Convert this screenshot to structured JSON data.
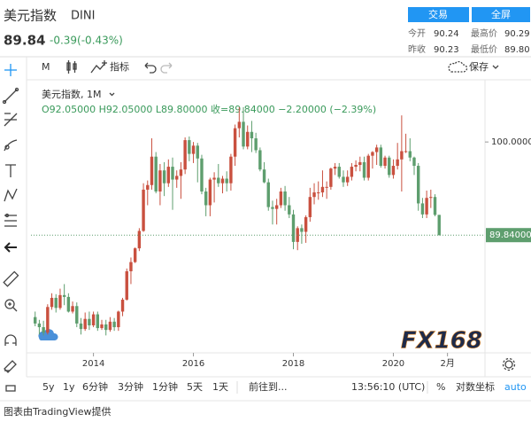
{
  "header": {
    "name": "美元指数",
    "symbol": "DINI",
    "price": "89.84",
    "change": "-0.39(-0.43%)",
    "buttons": [
      "交易",
      "全屏"
    ],
    "stats": [
      {
        "label": "今开",
        "value": "90.24"
      },
      {
        "label": "最高价",
        "value": "90.29"
      },
      {
        "label": "昨收",
        "value": "90.23"
      },
      {
        "label": "最低价",
        "value": "89.80"
      }
    ]
  },
  "toolbar": {
    "interval": "M",
    "indicators": "指标",
    "save": "保存"
  },
  "chart_data": {
    "type": "candlestick",
    "legend": {
      "title": "美元指数, 1M",
      "ohlc": "O92.05000 H92.05000 L89.80000 收=89.84000 −2.20000 (−2.39%)"
    },
    "x": [
      "2012-11",
      "2012-12",
      "2013-01",
      "2013-02",
      "2013-03",
      "2013-04",
      "2013-05",
      "2013-06",
      "2013-07",
      "2013-08",
      "2013-09",
      "2013-10",
      "2013-11",
      "2013-12",
      "2014-01",
      "2014-02",
      "2014-03",
      "2014-04",
      "2014-05",
      "2014-06",
      "2014-07",
      "2014-08",
      "2014-09",
      "2014-10",
      "2014-11",
      "2014-12",
      "2015-01",
      "2015-02",
      "2015-03",
      "2015-04",
      "2015-05",
      "2015-06",
      "2015-07",
      "2015-08",
      "2015-09",
      "2015-10",
      "2015-11",
      "2015-12",
      "2016-01",
      "2016-02",
      "2016-03",
      "2016-04",
      "2016-05",
      "2016-06",
      "2016-07",
      "2016-08",
      "2016-09",
      "2016-10",
      "2016-11",
      "2016-12",
      "2017-01",
      "2017-02",
      "2017-03",
      "2017-04",
      "2017-05",
      "2017-06",
      "2017-07",
      "2017-08",
      "2017-09",
      "2017-10",
      "2017-11",
      "2017-12",
      "2018-01",
      "2018-02",
      "2018-03",
      "2018-04",
      "2018-05",
      "2018-06",
      "2018-07",
      "2018-08",
      "2018-09",
      "2018-10",
      "2018-11",
      "2018-12",
      "2019-01",
      "2019-02",
      "2019-03",
      "2019-04",
      "2019-05",
      "2019-06",
      "2019-07",
      "2019-08",
      "2019-09",
      "2019-10",
      "2019-11",
      "2019-12",
      "2020-01",
      "2020-02",
      "2020-03",
      "2020-04",
      "2020-05",
      "2020-06",
      "2020-07",
      "2020-08",
      "2020-09",
      "2020-10",
      "2020-11",
      "2020-12"
    ],
    "open": [
      80.9,
      80.2,
      79.8,
      79.2,
      82.0,
      83.0,
      81.9,
      83.3,
      83.1,
      81.5,
      82.1,
      80.2,
      79.6,
      80.7,
      80.0,
      81.2,
      79.7,
      80.1,
      79.5,
      80.4,
      79.8,
      81.5,
      82.8,
      85.9,
      86.9,
      88.4,
      90.3,
      94.8,
      95.3,
      98.4,
      94.6,
      96.9,
      95.5,
      97.3,
      95.9,
      96.3,
      97.0,
      100.2,
      98.7,
      99.6,
      98.2,
      94.6,
      93.1,
      95.9,
      96.1,
      95.5,
      96.0,
      95.5,
      98.4,
      101.5,
      102.2,
      99.5,
      101.1,
      100.4,
      99.1,
      97.0,
      95.6,
      92.9,
      92.7,
      93.1,
      94.6,
      93.1,
      92.1,
      89.1,
      90.6,
      90.2,
      91.8,
      94.0,
      94.5,
      94.5,
      95.1,
      95.1,
      97.1,
      97.3,
      96.2,
      95.6,
      96.2,
      97.3,
      97.5,
      97.8,
      96.1,
      98.5,
      98.9,
      99.4,
      97.4,
      98.3,
      96.4,
      97.4,
      98.1,
      99.0,
      99.0,
      98.3,
      97.4,
      93.3,
      92.1,
      93.9,
      94.0,
      92.05
    ],
    "high": [
      81.5,
      80.6,
      80.5,
      82.3,
      83.5,
      83.4,
      84.0,
      84.5,
      83.5,
      82.6,
      82.5,
      80.8,
      81.4,
      81.5,
      81.5,
      81.5,
      80.6,
      80.6,
      80.9,
      80.8,
      81.6,
      83.0,
      86.2,
      87.4,
      88.5,
      90.6,
      95.5,
      95.8,
      100.4,
      98.9,
      97.6,
      97.8,
      98.1,
      98.3,
      96.9,
      97.8,
      100.5,
      100.6,
      100.0,
      99.9,
      98.6,
      95.0,
      96.1,
      96.7,
      97.6,
      96.3,
      96.8,
      98.7,
      101.9,
      103.8,
      103.8,
      101.8,
      102.3,
      101.0,
      99.4,
      97.8,
      96.0,
      93.6,
      93.8,
      95.0,
      95.2,
      94.0,
      92.6,
      90.8,
      91.0,
      92.0,
      95.0,
      95.5,
      95.7,
      96.9,
      95.7,
      97.2,
      97.7,
      97.7,
      96.9,
      96.9,
      97.7,
      98.0,
      98.4,
      98.4,
      98.7,
      99.0,
      99.7,
      99.7,
      98.5,
      98.5,
      98.1,
      99.9,
      102.9,
      100.9,
      100.4,
      98.4,
      97.7,
      93.9,
      94.7,
      94.8,
      94.3,
      92.05
    ],
    "low": [
      79.9,
      79.0,
      78.9,
      79.0,
      81.7,
      81.4,
      81.7,
      82.2,
      81.4,
      81.3,
      79.8,
      79.0,
      79.4,
      79.5,
      79.8,
      79.4,
      79.5,
      78.9,
      79.3,
      79.4,
      79.4,
      81.0,
      82.7,
      84.5,
      86.8,
      88.1,
      90.2,
      93.1,
      94.8,
      94.4,
      93.1,
      94.1,
      95.1,
      92.6,
      95.0,
      93.8,
      96.5,
      97.9,
      97.7,
      95.6,
      94.3,
      91.9,
      91.9,
      93.4,
      95.1,
      94.4,
      94.6,
      94.7,
      97.4,
      100.5,
      99.2,
      99.2,
      98.9,
      98.8,
      96.8,
      95.5,
      92.5,
      91.0,
      91.0,
      92.8,
      92.5,
      91.7,
      88.3,
      88.2,
      88.9,
      89.0,
      91.3,
      93.2,
      93.7,
      94.0,
      93.8,
      94.8,
      96.4,
      96.0,
      95.1,
      95.2,
      95.8,
      96.8,
      96.8,
      95.8,
      95.8,
      97.1,
      97.5,
      97.2,
      97.1,
      96.1,
      96.0,
      97.0,
      94.6,
      98.8,
      97.9,
      96.4,
      92.5,
      91.7,
      91.7,
      92.8,
      91.9,
      89.8
    ],
    "close": [
      80.2,
      79.8,
      79.2,
      82.0,
      83.0,
      81.9,
      83.3,
      83.1,
      81.5,
      82.1,
      80.2,
      79.6,
      80.7,
      80.0,
      81.2,
      79.7,
      80.1,
      79.5,
      80.4,
      79.8,
      81.5,
      82.8,
      85.9,
      86.9,
      88.4,
      90.3,
      94.8,
      95.3,
      98.4,
      94.6,
      96.9,
      95.5,
      97.3,
      95.9,
      96.3,
      97.0,
      100.2,
      98.7,
      99.6,
      98.2,
      94.6,
      93.1,
      95.9,
      96.1,
      95.5,
      96.0,
      95.5,
      98.4,
      101.5,
      102.2,
      99.5,
      101.1,
      100.4,
      99.1,
      97.0,
      95.6,
      92.9,
      92.7,
      93.1,
      94.6,
      93.1,
      92.1,
      89.1,
      90.6,
      90.2,
      91.8,
      94.0,
      94.5,
      94.5,
      95.1,
      95.1,
      97.1,
      97.3,
      96.2,
      95.6,
      96.2,
      97.3,
      97.5,
      97.8,
      96.1,
      98.5,
      98.9,
      99.4,
      97.4,
      98.3,
      96.4,
      97.4,
      98.1,
      99.0,
      99.0,
      98.3,
      97.4,
      93.3,
      92.1,
      93.9,
      94.0,
      92.05,
      89.84
    ],
    "up_color": "#c9503f",
    "down_color": "#5e9e6e",
    "xlim": [
      "2012-10",
      "2021-11"
    ],
    "xticks": [
      {
        "value": "2014-01",
        "label": "2014"
      },
      {
        "value": "2016-01",
        "label": "2016"
      },
      {
        "value": "2018-01",
        "label": "2018"
      },
      {
        "value": "2020-01",
        "label": "2020"
      },
      {
        "value": "2021-02",
        "label": "2月"
      }
    ],
    "ylim": [
      77,
      106.3
    ],
    "yticks": [
      {
        "value": 100,
        "label": "100.00000"
      }
    ],
    "last_price": {
      "value": 89.84,
      "label": "89.84000"
    },
    "watermark": "FX168"
  },
  "bottom_bar": {
    "ranges": [
      "5y",
      "1y",
      "6分钟",
      "3分钟",
      "1分钟",
      "5天",
      "1天"
    ],
    "goto": "前往到...",
    "time": "13:56:10 (UTC)",
    "percent": "%",
    "log": "对数坐标",
    "auto": "auto"
  },
  "footer": "图表由TradingView提供"
}
